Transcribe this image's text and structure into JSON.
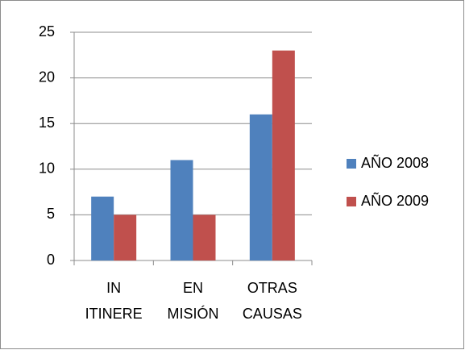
{
  "chart_data": {
    "type": "bar",
    "categories": [
      "IN ITINERE",
      "EN MISIÓN",
      "OTRAS CAUSAS"
    ],
    "series": [
      {
        "name": "AÑO 2008",
        "color": "#4f81bd",
        "values": [
          7,
          11,
          16
        ]
      },
      {
        "name": "AÑO 2009",
        "color": "#c0504d",
        "values": [
          5,
          5,
          23
        ]
      }
    ],
    "ylim": [
      0,
      25
    ],
    "yticks": [
      0,
      5,
      10,
      15,
      20,
      25
    ],
    "grid": true,
    "legend": "right"
  }
}
